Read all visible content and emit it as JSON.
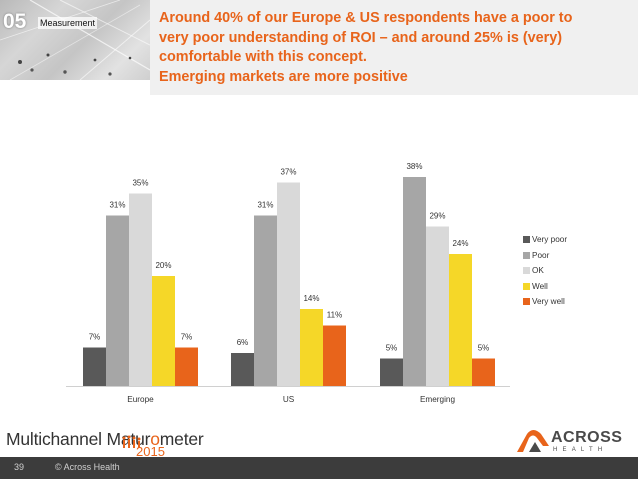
{
  "header": {
    "section_number": "05",
    "section_label": "Measurement",
    "title_lines": [
      "Around 40% of our Europe & US respondents have a poor to",
      "very poor understanding of ROI – and around 25% is (very)",
      "comfortable with this concept.",
      "Emerging markets are more positive"
    ]
  },
  "colors": {
    "accent": "#e8641b",
    "very_poor": "#595959",
    "poor": "#a6a6a6",
    "ok": "#d9d9d9",
    "well": "#f5d728",
    "very_well": "#e8641b"
  },
  "chart_data": {
    "type": "bar",
    "title": "",
    "xlabel": "",
    "ylabel": "",
    "ylim": [
      0,
      40
    ],
    "categories": [
      "Europe",
      "US",
      "Emerging"
    ],
    "series": [
      {
        "name": "Very poor",
        "values": [
          7,
          6,
          5
        ],
        "labels": [
          "7%",
          "6%",
          "5%"
        ]
      },
      {
        "name": "Poor",
        "values": [
          31,
          31,
          38
        ],
        "labels": [
          "31%",
          "31%",
          "38%"
        ]
      },
      {
        "name": "OK",
        "values": [
          35,
          37,
          29
        ],
        "labels": [
          "35%",
          "37%",
          "29%"
        ]
      },
      {
        "name": "Well",
        "values": [
          20,
          14,
          24
        ],
        "labels": [
          "20%",
          "14%",
          "24%"
        ]
      },
      {
        "name": "Very well",
        "values": [
          7,
          11,
          5
        ],
        "labels": [
          "7%",
          "11%",
          "5%"
        ]
      }
    ],
    "legend_position": "right"
  },
  "footer": {
    "page_number": "39",
    "copyright": "© Across Health"
  },
  "logo_left": {
    "text_before": "Multichannel Matur",
    "text_accent": "o",
    "text_after": "meter",
    "year": "2015"
  },
  "logo_right": {
    "brand": "ACROSS",
    "sub": "HEALTH"
  }
}
